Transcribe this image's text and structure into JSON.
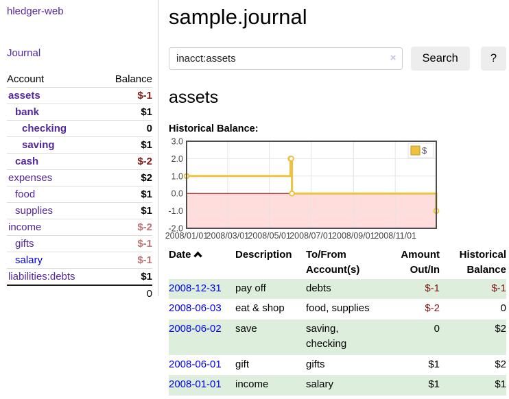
{
  "sidebar": {
    "brand": "hledger-web",
    "journal_link": "Journal",
    "accounts_table": {
      "col_account": "Account",
      "col_balance": "Balance",
      "rows": [
        {
          "label": "assets",
          "balance": "$-1",
          "depth": 1,
          "bold": true,
          "tone": "dr",
          "link": "purple"
        },
        {
          "label": "bank",
          "balance": "$1",
          "depth": 2,
          "bold": true,
          "tone": "k",
          "link": "purple"
        },
        {
          "label": "checking",
          "balance": "0",
          "depth": 3,
          "bold": true,
          "tone": "k",
          "link": "purple"
        },
        {
          "label": "saving",
          "balance": "$1",
          "depth": 3,
          "bold": true,
          "tone": "k",
          "link": "purple"
        },
        {
          "label": "cash",
          "balance": "$-2",
          "depth": 2,
          "bold": true,
          "tone": "dr",
          "link": "purple"
        },
        {
          "label": "expenses",
          "balance": "$2",
          "depth": 1,
          "bold": false,
          "tone": "k",
          "link": "purple"
        },
        {
          "label": "food",
          "balance": "$1",
          "depth": 2,
          "bold": false,
          "tone": "k",
          "link": "purple"
        },
        {
          "label": "supplies",
          "balance": "$1",
          "depth": 2,
          "bold": false,
          "tone": "k",
          "link": "purple"
        },
        {
          "label": "income",
          "balance": "$-2",
          "depth": 1,
          "bold": false,
          "tone": "lr",
          "link": "purple"
        },
        {
          "label": "gifts",
          "balance": "$-1",
          "depth": 2,
          "bold": false,
          "tone": "lr",
          "link": "purple"
        },
        {
          "label": "salary",
          "balance": "$-1",
          "depth": 2,
          "bold": false,
          "tone": "lr",
          "link": "blue"
        },
        {
          "label": "liabilities:debts",
          "balance": "$1",
          "depth": 1,
          "bold": false,
          "tone": "k",
          "link": "purple"
        }
      ],
      "total": "0"
    }
  },
  "main": {
    "title": "sample.journal",
    "search": {
      "value": "inacct:assets",
      "clear_icon": "×",
      "search_button": "Search",
      "help_button": "?"
    },
    "account_heading": "assets",
    "chart_title": "Historical Balance:"
  },
  "chart_data": {
    "type": "line",
    "title": "Historical Balance",
    "step": true,
    "x_range": [
      "2008/01/01",
      "2008/12/31"
    ],
    "x_ticks": [
      "2008/01/01",
      "2008/03/01",
      "2008/05/01",
      "2008/07/01",
      "2008/09/01",
      "2008/11/01"
    ],
    "y_ticks": [
      3,
      2,
      1,
      0,
      -1,
      -2
    ],
    "y_tick_labels": [
      "3.0",
      "2.0",
      "1.0",
      "0.0",
      "-1.0",
      "-2.0"
    ],
    "ylim": [
      -2,
      3
    ],
    "series": [
      {
        "name": "$",
        "color": "#edc240",
        "points": [
          [
            "2008/01/01",
            1
          ],
          [
            "2008/06/01",
            2
          ],
          [
            "2008/06/02",
            2
          ],
          [
            "2008/06/03",
            0
          ],
          [
            "2008/12/31",
            -1
          ]
        ]
      }
    ],
    "colors": {
      "negative_region": "#ffdddd",
      "zero_line": "#aa0000",
      "border": "#4d4d4d",
      "grid": "#e4e4e4",
      "tick_text": "#444444",
      "legend_border": "#dddddd",
      "legend_swatch_border": "#bf9722"
    },
    "legend_position": "top-right"
  },
  "register": {
    "headers": {
      "date": "Date",
      "description": "Description",
      "accounts": "To/From\nAccount(s)",
      "amount": "Amount\nOut/In",
      "balance": "Historical\nBalance"
    },
    "rows": [
      {
        "date": "2008-12-31",
        "description": "pay off",
        "accounts": "debts",
        "amount": "$-1",
        "amount_neg": true,
        "balance": "$-1",
        "balance_neg": true
      },
      {
        "date": "2008-06-03",
        "description": "eat & shop",
        "accounts": "food, supplies",
        "amount": "$-2",
        "amount_neg": true,
        "balance": "0",
        "balance_neg": false
      },
      {
        "date": "2008-06-02",
        "description": "save",
        "accounts": "saving,\nchecking",
        "amount": "0",
        "amount_neg": false,
        "balance": "$2",
        "balance_neg": false
      },
      {
        "date": "2008-06-01",
        "description": "gift",
        "accounts": "gifts",
        "amount": "$1",
        "amount_neg": false,
        "balance": "$2",
        "balance_neg": false
      },
      {
        "date": "2008-01-01",
        "description": "income",
        "accounts": "salary",
        "amount": "$1",
        "amount_neg": false,
        "balance": "$1",
        "balance_neg": false
      }
    ]
  }
}
